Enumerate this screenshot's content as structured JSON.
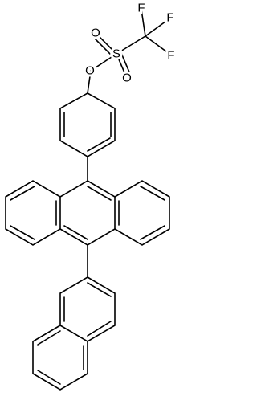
{
  "atoms": [
    {
      "label": "F"
    },
    {
      "label": "F"
    },
    {
      "label": "F"
    },
    {
      "label": "S"
    },
    {
      "label": "O"
    },
    {
      "label": "O"
    },
    {
      "label": "O"
    }
  ]
}
